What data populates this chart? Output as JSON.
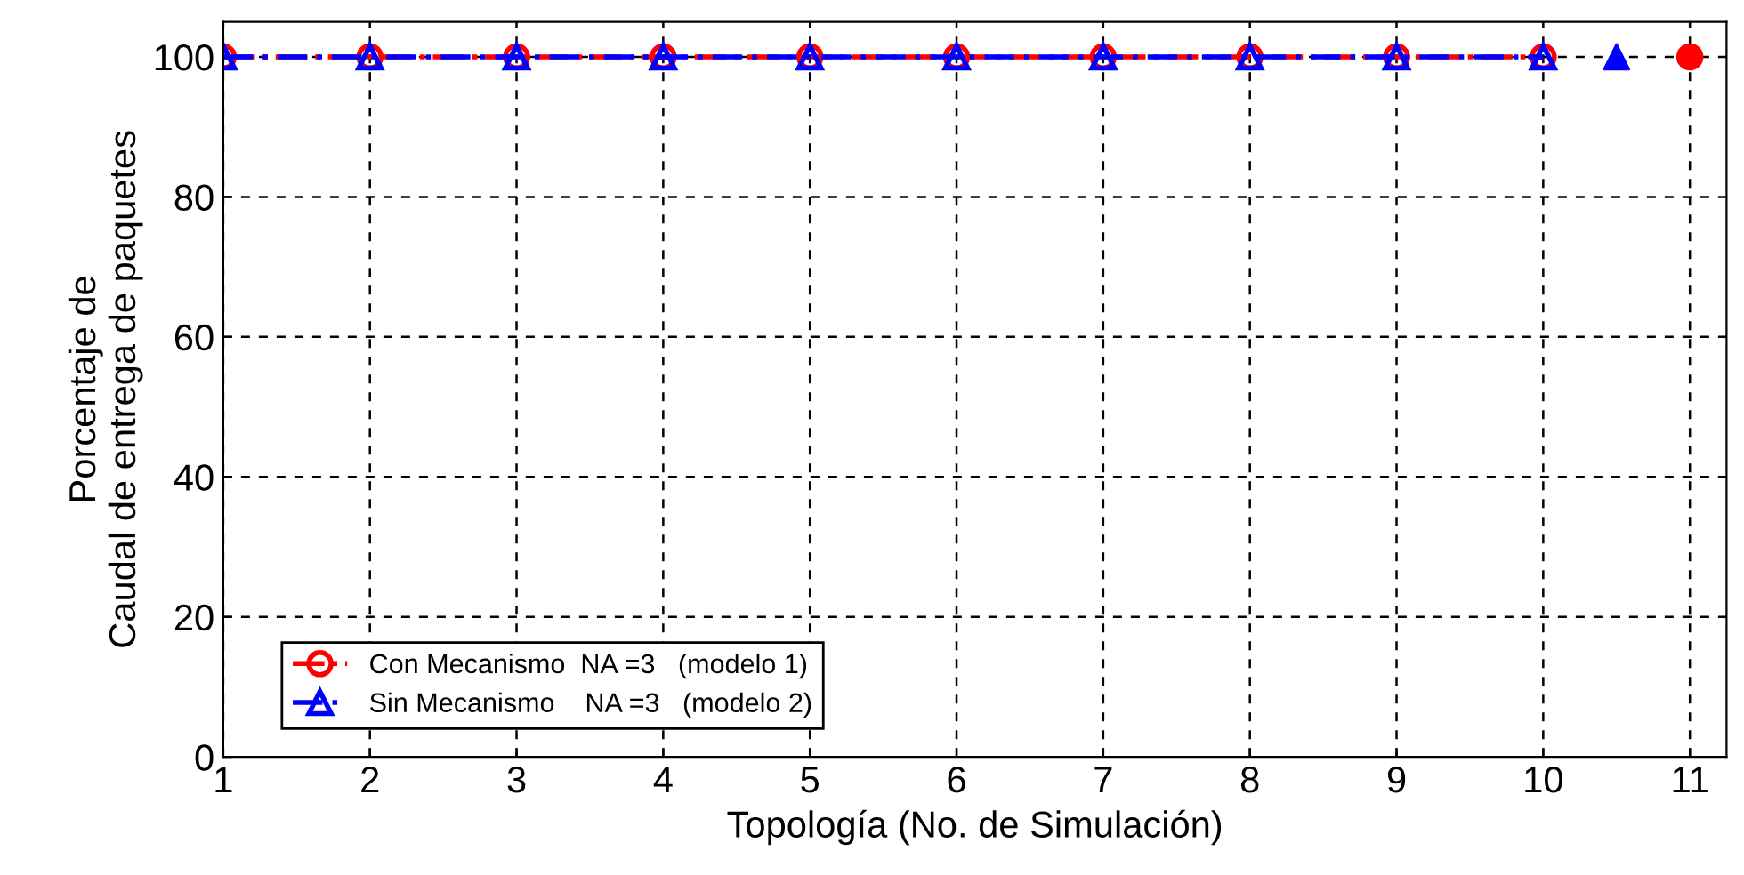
{
  "chart_data": {
    "type": "line",
    "xlabel": "Topología (No. de Simulación)",
    "ylabel": "Porcentaje de\nCaudal de entrega de paquetes",
    "xlim": [
      1,
      11.25
    ],
    "ylim": [
      0,
      105
    ],
    "xticks": [
      1,
      2,
      3,
      4,
      5,
      6,
      7,
      8,
      9,
      10,
      11
    ],
    "yticks": [
      0,
      20,
      40,
      60,
      80,
      100
    ],
    "grid": true,
    "legend": "bottom left",
    "series": [
      {
        "name": "Con Mecanismo  NA =3   (modelo 1)",
        "color": "#ff0000",
        "x": [
          1,
          2,
          3,
          4,
          5,
          6,
          7,
          8,
          9,
          10
        ],
        "values": [
          100,
          100,
          100,
          100,
          100,
          100,
          100,
          100,
          100,
          100
        ],
        "marker": "circle",
        "line_style": "dashed"
      },
      {
        "name": "Sin Mecanismo    NA =3   (modelo 2)",
        "color": "#0000ff",
        "x": [
          1,
          2,
          3,
          4,
          5,
          6,
          7,
          8,
          9,
          10
        ],
        "values": [
          100,
          100,
          100,
          100,
          100,
          100,
          100,
          100,
          100,
          100
        ],
        "marker": "triangle",
        "line_style": "dotted"
      },
      {
        "type": "scatter",
        "color": "#0000ff",
        "x": [
          10.5
        ],
        "values": [
          100
        ],
        "marker": "triangle"
      },
      {
        "type": "scatter",
        "color": "#ff0000",
        "x": [
          11
        ],
        "values": [
          100
        ],
        "marker": "circle"
      }
    ]
  }
}
